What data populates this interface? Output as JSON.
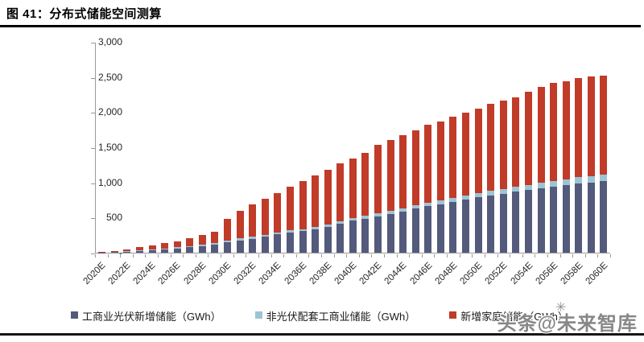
{
  "figure": {
    "title": "图 41：分布式储能空间测算"
  },
  "watermark": {
    "text": "头条@未来智库",
    "star_icon": "✳"
  },
  "colors": {
    "series_dark_blue": "#545A7C",
    "series_light_blue": "#9DC4D5",
    "series_red": "#C13B29",
    "axis": "#9a9a9a",
    "text": "#262626",
    "rule": "#000000"
  },
  "chart_data": {
    "type": "bar",
    "stacked": true,
    "grid": false,
    "legend_position": "bottom",
    "title": "图 41：分布式储能空间测算",
    "xlabel": "",
    "ylabel": "",
    "ylim": [
      0,
      3000
    ],
    "y_ticks": [
      "-",
      "500",
      "1,000",
      "1,500",
      "2,000",
      "2,500",
      "3,000"
    ],
    "categories": [
      2020,
      2021,
      2022,
      2023,
      2024,
      2025,
      2026,
      2027,
      2028,
      2029,
      2030,
      2031,
      2032,
      2033,
      2034,
      2035,
      2036,
      2037,
      2038,
      2039,
      2040,
      2041,
      2042,
      2043,
      2044,
      2045,
      2046,
      2047,
      2048,
      2049,
      2050,
      2051,
      2052,
      2053,
      2054,
      2055,
      2056,
      2057,
      2058,
      2059,
      2060
    ],
    "x_tick_labels": [
      "2020E",
      "2022E",
      "2024E",
      "2026E",
      "2028E",
      "2030E",
      "2032E",
      "2034E",
      "2036E",
      "2038E",
      "2040E",
      "2042E",
      "2044E",
      "2046E",
      "2048E",
      "2050E",
      "2052E",
      "2054E",
      "2056E",
      "2058E",
      "2060E"
    ],
    "series": [
      {
        "name": "工商业光伏新增储能（GWh）",
        "color": "#545A7C",
        "values": [
          3,
          8,
          15,
          25,
          35,
          45,
          60,
          75,
          95,
          115,
          150,
          175,
          200,
          225,
          260,
          285,
          305,
          335,
          370,
          410,
          455,
          485,
          520,
          550,
          585,
          625,
          660,
          690,
          720,
          755,
          790,
          815,
          840,
          865,
          890,
          915,
          940,
          960,
          985,
          1000,
          1020
        ]
      },
      {
        "name": "非光伏配套工商业储能（GWh）",
        "color": "#9DC4D5",
        "values": [
          2,
          5,
          10,
          12,
          15,
          17,
          18,
          20,
          22,
          24,
          25,
          26,
          28,
          29,
          30,
          31,
          32,
          33,
          34,
          35,
          36,
          38,
          40,
          42,
          44,
          46,
          48,
          51,
          54,
          57,
          60,
          63,
          66,
          69,
          72,
          76,
          80,
          84,
          88,
          92,
          95
        ]
      },
      {
        "name": "新增家庭储能（GWh）",
        "color": "#C13B29",
        "values": [
          3,
          14,
          25,
          39,
          57,
          72,
          78,
          115,
          131,
          156,
          305,
          399,
          462,
          511,
          560,
          619,
          683,
          732,
          771,
          825,
          854,
          902,
          970,
          1008,
          1041,
          1074,
          1112,
          1129,
          1161,
          1178,
          1205,
          1237,
          1264,
          1276,
          1328,
          1364,
          1395,
          1401,
          1407,
          1413,
          1410
        ]
      }
    ]
  }
}
